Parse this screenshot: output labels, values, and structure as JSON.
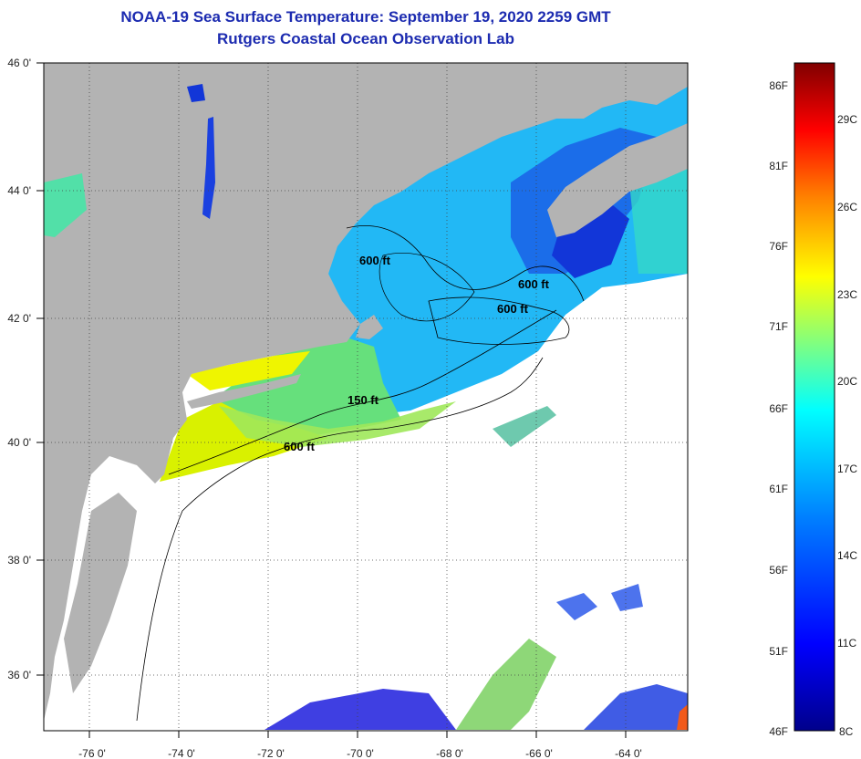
{
  "title": {
    "line1": "NOAA-19 Sea Surface Temperature:  September 19, 2020 2259 GMT",
    "line2": "Rutgers Coastal Ocean Observation Lab"
  },
  "map": {
    "colors": {
      "land": "#b3b3b3",
      "no_data": "#ffffff",
      "grid": "#444444",
      "frame": "#000000"
    },
    "lon_labels": [
      "-76 0'",
      "-74 0'",
      "-72 0'",
      "-70 0'",
      "-68 0'",
      "-66 0'",
      "-64 0'"
    ],
    "lat_labels": [
      "46 0'",
      "44 0'",
      "42 0'",
      "40 0'",
      "38 0'",
      "36 0'"
    ],
    "contour_labels": [
      "600 ft",
      "600 ft",
      "600 ft",
      "150 ft",
      "600 ft"
    ]
  },
  "colorbar": {
    "fahrenheit": [
      "86F",
      "81F",
      "76F",
      "71F",
      "66F",
      "61F",
      "56F",
      "51F",
      "46F"
    ],
    "celsius": [
      "29C",
      "26C",
      "23C",
      "20C",
      "17C",
      "14C",
      "11C",
      "8C"
    ],
    "stops": [
      "#00008b",
      "#0000ff",
      "#0080ff",
      "#00ffff",
      "#80ff80",
      "#ffff00",
      "#ff8000",
      "#ff0000",
      "#800000"
    ]
  }
}
